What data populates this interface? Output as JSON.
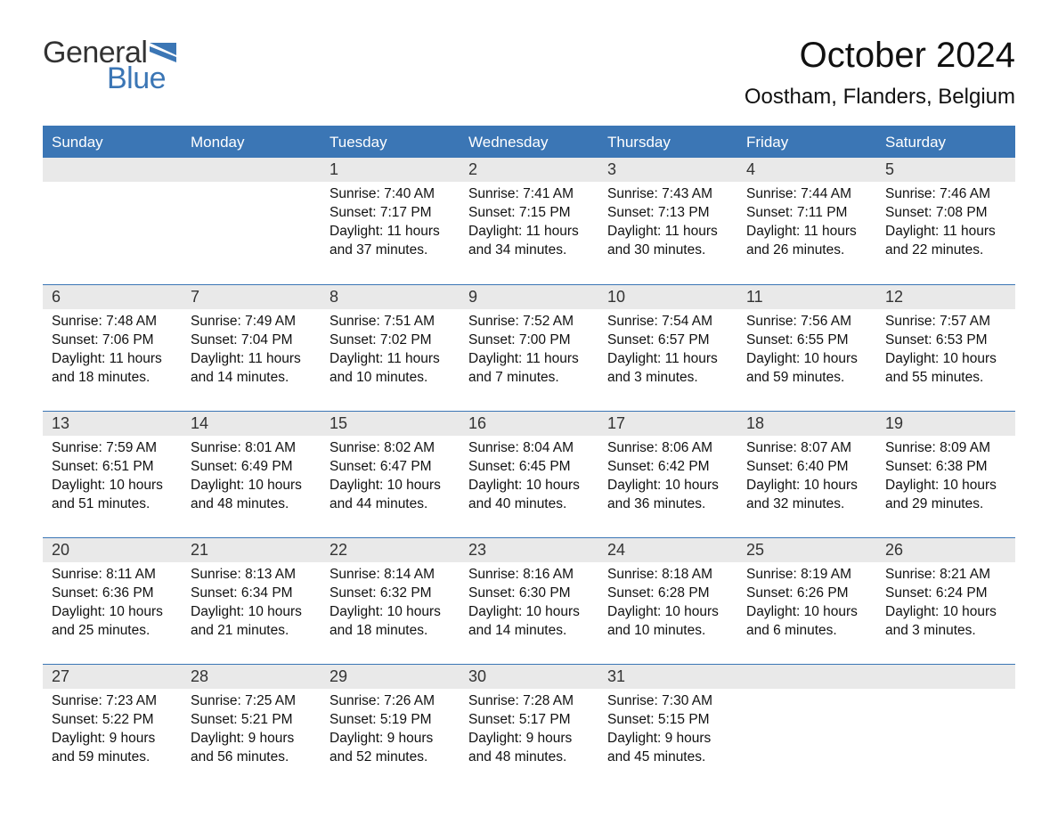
{
  "logo": {
    "word1": "General",
    "word2": "Blue",
    "word1_color": "#333333",
    "word2_color": "#3b76b5",
    "flag_color": "#3b76b5"
  },
  "title": {
    "month": "October 2024",
    "location": "Oostham, Flanders, Belgium"
  },
  "colors": {
    "header_bg": "#3b76b5",
    "header_text": "#ffffff",
    "daynum_bg": "#e9e9e9",
    "border": "#3b76b5",
    "body_text": "#111111",
    "page_bg": "#ffffff"
  },
  "typography": {
    "month_fontsize": 40,
    "location_fontsize": 24,
    "dow_fontsize": 17,
    "daynum_fontsize": 18,
    "detail_fontsize": 15.5
  },
  "calendar": {
    "type": "table",
    "columns": [
      "Sunday",
      "Monday",
      "Tuesday",
      "Wednesday",
      "Thursday",
      "Friday",
      "Saturday"
    ],
    "leading_blanks": 2,
    "days": [
      {
        "n": 1,
        "sunrise": "7:40 AM",
        "sunset": "7:17 PM",
        "daylight": "11 hours and 37 minutes."
      },
      {
        "n": 2,
        "sunrise": "7:41 AM",
        "sunset": "7:15 PM",
        "daylight": "11 hours and 34 minutes."
      },
      {
        "n": 3,
        "sunrise": "7:43 AM",
        "sunset": "7:13 PM",
        "daylight": "11 hours and 30 minutes."
      },
      {
        "n": 4,
        "sunrise": "7:44 AM",
        "sunset": "7:11 PM",
        "daylight": "11 hours and 26 minutes."
      },
      {
        "n": 5,
        "sunrise": "7:46 AM",
        "sunset": "7:08 PM",
        "daylight": "11 hours and 22 minutes."
      },
      {
        "n": 6,
        "sunrise": "7:48 AM",
        "sunset": "7:06 PM",
        "daylight": "11 hours and 18 minutes."
      },
      {
        "n": 7,
        "sunrise": "7:49 AM",
        "sunset": "7:04 PM",
        "daylight": "11 hours and 14 minutes."
      },
      {
        "n": 8,
        "sunrise": "7:51 AM",
        "sunset": "7:02 PM",
        "daylight": "11 hours and 10 minutes."
      },
      {
        "n": 9,
        "sunrise": "7:52 AM",
        "sunset": "7:00 PM",
        "daylight": "11 hours and 7 minutes."
      },
      {
        "n": 10,
        "sunrise": "7:54 AM",
        "sunset": "6:57 PM",
        "daylight": "11 hours and 3 minutes."
      },
      {
        "n": 11,
        "sunrise": "7:56 AM",
        "sunset": "6:55 PM",
        "daylight": "10 hours and 59 minutes."
      },
      {
        "n": 12,
        "sunrise": "7:57 AM",
        "sunset": "6:53 PM",
        "daylight": "10 hours and 55 minutes."
      },
      {
        "n": 13,
        "sunrise": "7:59 AM",
        "sunset": "6:51 PM",
        "daylight": "10 hours and 51 minutes."
      },
      {
        "n": 14,
        "sunrise": "8:01 AM",
        "sunset": "6:49 PM",
        "daylight": "10 hours and 48 minutes."
      },
      {
        "n": 15,
        "sunrise": "8:02 AM",
        "sunset": "6:47 PM",
        "daylight": "10 hours and 44 minutes."
      },
      {
        "n": 16,
        "sunrise": "8:04 AM",
        "sunset": "6:45 PM",
        "daylight": "10 hours and 40 minutes."
      },
      {
        "n": 17,
        "sunrise": "8:06 AM",
        "sunset": "6:42 PM",
        "daylight": "10 hours and 36 minutes."
      },
      {
        "n": 18,
        "sunrise": "8:07 AM",
        "sunset": "6:40 PM",
        "daylight": "10 hours and 32 minutes."
      },
      {
        "n": 19,
        "sunrise": "8:09 AM",
        "sunset": "6:38 PM",
        "daylight": "10 hours and 29 minutes."
      },
      {
        "n": 20,
        "sunrise": "8:11 AM",
        "sunset": "6:36 PM",
        "daylight": "10 hours and 25 minutes."
      },
      {
        "n": 21,
        "sunrise": "8:13 AM",
        "sunset": "6:34 PM",
        "daylight": "10 hours and 21 minutes."
      },
      {
        "n": 22,
        "sunrise": "8:14 AM",
        "sunset": "6:32 PM",
        "daylight": "10 hours and 18 minutes."
      },
      {
        "n": 23,
        "sunrise": "8:16 AM",
        "sunset": "6:30 PM",
        "daylight": "10 hours and 14 minutes."
      },
      {
        "n": 24,
        "sunrise": "8:18 AM",
        "sunset": "6:28 PM",
        "daylight": "10 hours and 10 minutes."
      },
      {
        "n": 25,
        "sunrise": "8:19 AM",
        "sunset": "6:26 PM",
        "daylight": "10 hours and 6 minutes."
      },
      {
        "n": 26,
        "sunrise": "8:21 AM",
        "sunset": "6:24 PM",
        "daylight": "10 hours and 3 minutes."
      },
      {
        "n": 27,
        "sunrise": "7:23 AM",
        "sunset": "5:22 PM",
        "daylight": "9 hours and 59 minutes."
      },
      {
        "n": 28,
        "sunrise": "7:25 AM",
        "sunset": "5:21 PM",
        "daylight": "9 hours and 56 minutes."
      },
      {
        "n": 29,
        "sunrise": "7:26 AM",
        "sunset": "5:19 PM",
        "daylight": "9 hours and 52 minutes."
      },
      {
        "n": 30,
        "sunrise": "7:28 AM",
        "sunset": "5:17 PM",
        "daylight": "9 hours and 48 minutes."
      },
      {
        "n": 31,
        "sunrise": "7:30 AM",
        "sunset": "5:15 PM",
        "daylight": "9 hours and 45 minutes."
      }
    ],
    "labels": {
      "sunrise": "Sunrise: ",
      "sunset": "Sunset: ",
      "daylight": "Daylight: "
    }
  }
}
